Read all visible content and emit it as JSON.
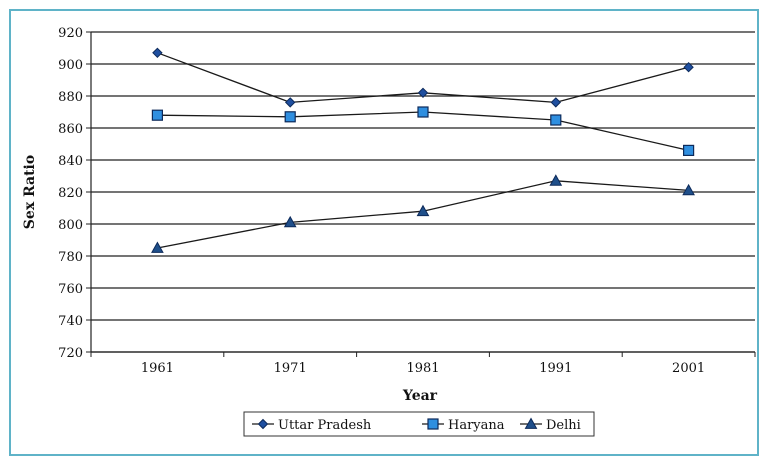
{
  "chart_data": {
    "type": "line",
    "title": "",
    "xlabel": "Year",
    "ylabel": "Sex Ratio",
    "categories": [
      "1961",
      "1971",
      "1981",
      "1991",
      "2001"
    ],
    "ylim": [
      720,
      920
    ],
    "yticks": [
      720,
      740,
      760,
      780,
      800,
      820,
      840,
      860,
      880,
      900,
      920
    ],
    "grid": "horizontal",
    "legend_position": "bottom",
    "series": [
      {
        "name": "Uttar Pradesh",
        "marker": "diamond",
        "values": [
          907,
          876,
          882,
          876,
          898
        ],
        "color": "#1f4fa0"
      },
      {
        "name": "Haryana",
        "marker": "square",
        "values": [
          868,
          867,
          870,
          865,
          846
        ],
        "color": "#2f8fe0"
      },
      {
        "name": "Delhi",
        "marker": "triangle",
        "values": [
          785,
          801,
          808,
          827,
          821
        ],
        "color": "#1f4f8a"
      }
    ]
  }
}
